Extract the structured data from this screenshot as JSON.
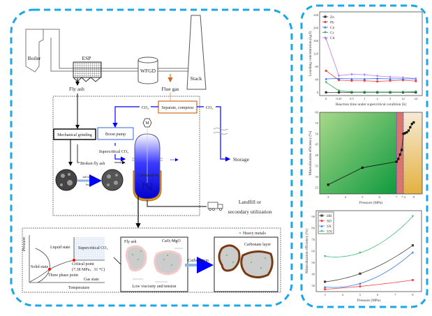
{
  "colors": {
    "frame": "#1aa7e8",
    "co2_line": "#0000ff",
    "flue_gas": "#d2691e",
    "critical_point": "#ff0000"
  },
  "process": {
    "boiler": "Boiler",
    "esp": "ESP",
    "wfgd": "WFGD",
    "stack": "Stack",
    "fly_ash": "Fly ash",
    "flue_gas": "Flue gas",
    "separate_compress": "Separate, compress",
    "co2_left": "CO₂",
    "co2_right": "CO₂",
    "mechanical_grinding": "Mechanical grinding",
    "boost_pump": "Boost pump",
    "supercritical_co2": "Supercritical CO₂",
    "broken_fly_ash": "Broken fly ash",
    "ball_milling": "ball milling",
    "broke": "broke",
    "motor": "M",
    "carbonation_reactor": "Carbonation",
    "storage": "Storage",
    "landfill_1": "Landfill or",
    "landfill_2": "secondary utilization"
  },
  "phase_diagram": {
    "ylabel": "Pressure",
    "xlabel": "Temperature",
    "liquid": "Liquid state",
    "supercritical": "Supercritical CO₂",
    "solid": "Solid state",
    "critical_point": "Critical point",
    "critical_values": "(7.38 MPa，31 °C)",
    "three_phase": "Three phase point",
    "gas": "Gas state"
  },
  "mechanism": {
    "fly_ash": "Fly ash",
    "cao_mgo": "CaO, MgO",
    "low_viscosity": "Low viscosity and tension",
    "carbonation_arrow": "Carbonation",
    "heavy_metals": "Heavy metals",
    "carbonate_layer": "Carbonate layer"
  },
  "chart_data": [
    {
      "type": "line",
      "xlabel": "Reaction time under supercritical condition (h)",
      "ylabel": "Leaching concentration (ug/l)",
      "categories": [
        "0",
        "0.25",
        "0.5",
        "1",
        "2",
        "3",
        "12",
        "24"
      ],
      "ylim": [
        -10,
        250
      ],
      "yticks": [
        0,
        40,
        80,
        120,
        160,
        200,
        240
      ],
      "legend": "top-left",
      "series": [
        {
          "name": "Zn",
          "color": "#333333",
          "marker": "square",
          "values": [
            0,
            0,
            0,
            0,
            0,
            0,
            0,
            0
          ]
        },
        {
          "name": "Pb",
          "color": "#ee4444",
          "marker": "circle",
          "values": [
            67,
            38,
            36,
            36,
            34,
            36,
            38,
            35
          ]
        },
        {
          "name": "Cu",
          "color": "#3366ee",
          "marker": "triangle",
          "values": [
            42,
            43,
            42,
            42,
            43,
            42,
            42,
            42
          ]
        },
        {
          "name": "Cr",
          "color": "#22aa55",
          "marker": "triangle-down",
          "values": [
            31,
            5,
            1,
            1,
            1,
            1,
            1,
            2
          ]
        },
        {
          "name": "Cd",
          "color": "#bb77ee",
          "marker": "diamond",
          "values": [
            166,
            52,
            56,
            55,
            51,
            48,
            46,
            43
          ]
        }
      ]
    },
    {
      "type": "line",
      "xlabel": "Pressure (MPa)",
      "ylabel": "Mineralization efficiency (%)",
      "xlim": [
        2.5,
        8.5
      ],
      "ylim": [
        22,
        60
      ],
      "xticks": [
        3,
        4,
        5,
        6,
        7,
        7.4,
        8
      ],
      "yticks": [
        25,
        30,
        35,
        40,
        45,
        50,
        55,
        60
      ],
      "regions": [
        {
          "from": 2.5,
          "to": 7,
          "color": "green"
        },
        {
          "from": 7,
          "to": 7.4,
          "color": "red"
        },
        {
          "from": 7.4,
          "to": 8.5,
          "color": "orange"
        }
      ],
      "series": [
        {
          "color": "#111111",
          "x": [
            3,
            5,
            7,
            7.1,
            7.2,
            7.3,
            7.4,
            7.5,
            7.6,
            7.7,
            7.8,
            7.9,
            8
          ],
          "y": [
            26.3,
            34.2,
            37,
            38.3,
            40.3,
            42.5,
            50,
            50.3,
            50.7,
            51.5,
            53,
            54.6,
            55.3
          ]
        }
      ]
    },
    {
      "type": "scatter",
      "xlabel": "Pressure (MPa)",
      "ylabel": "Mineralization efficiency (%)",
      "xlim": [
        2.5,
        8.5
      ],
      "ylim": [
        25,
        95
      ],
      "xticks": [
        3,
        4,
        5,
        6,
        7,
        8
      ],
      "yticks": [
        30,
        40,
        50,
        60,
        70,
        80,
        90
      ],
      "legend": "top-left",
      "series": [
        {
          "name": "HB",
          "color": "#444444",
          "marker": "square",
          "x": [
            3,
            5,
            8
          ],
          "y": [
            33.5,
            40.5,
            65
          ]
        },
        {
          "name": "SD",
          "color": "#ee4444",
          "marker": "circle",
          "x": [
            3,
            5,
            8
          ],
          "y": [
            27,
            29.5,
            35
          ]
        },
        {
          "name": "SX",
          "color": "#3377ee",
          "marker": "triangle",
          "x": [
            3,
            5,
            8
          ],
          "y": [
            29,
            32,
            59
          ]
        },
        {
          "name": "YN",
          "color": "#44bb77",
          "marker": "triangle-down",
          "x": [
            3,
            5,
            8
          ],
          "y": [
            55.5,
            58.5,
            90
          ]
        }
      ]
    }
  ]
}
